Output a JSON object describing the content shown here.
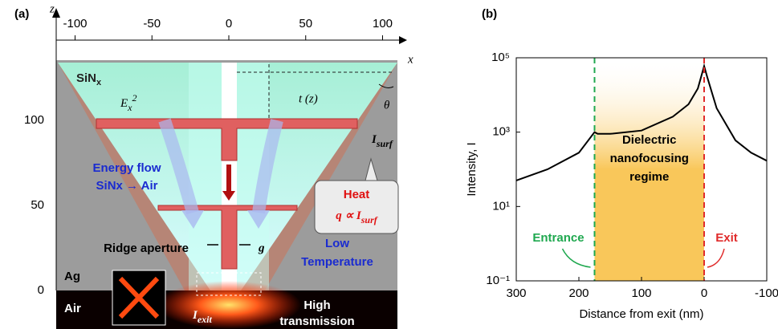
{
  "panel_a": {
    "label": "(a)",
    "z_label": "z",
    "x_label": "x",
    "xticks": [
      -100,
      -50,
      0,
      50,
      100
    ],
    "zticks": [
      0,
      50,
      100
    ],
    "sinx": {
      "base": "SiN",
      "sub": "x"
    },
    "field": {
      "base": "E",
      "sub": "x",
      "sup": "2"
    },
    "thickness": "t (z)",
    "angle": "θ",
    "i_surf": {
      "base": "I",
      "sub": "surf"
    },
    "energy_flow": [
      "Energy flow",
      "SiNx → Air"
    ],
    "heat": {
      "title": "Heat",
      "formula": "q ∝ ",
      "base": "I",
      "sub": "surf"
    },
    "ridge": "Ridge aperture",
    "gap": "g",
    "low_temp": [
      "Low",
      "Temperature"
    ],
    "ag": "Ag",
    "air": "Air",
    "i_exit": {
      "base": "I",
      "sub": "exit"
    },
    "high_trans": [
      "High",
      "transmission"
    ]
  },
  "chart_data": {
    "type": "line",
    "panel_label": "(b)",
    "x": [
      300,
      250,
      200,
      175,
      170,
      150,
      100,
      50,
      25,
      10,
      0,
      -5,
      -20,
      -50,
      -75,
      -100
    ],
    "values": [
      50,
      100,
      280,
      1000,
      900,
      900,
      1100,
      2600,
      5600,
      15000,
      60000,
      30000,
      4400,
      600,
      280,
      170
    ],
    "color": "#000000",
    "xlim": [
      300,
      -100
    ],
    "xticks": [
      300,
      200,
      100,
      0,
      -100
    ],
    "ylim": [
      0.1,
      100000
    ],
    "log_y": true,
    "yticks": [
      {
        "value": 100000,
        "label": "10⁵"
      },
      {
        "value": 1000,
        "label": "10³"
      },
      {
        "value": 10,
        "label": "10¹"
      },
      {
        "value": 0.1,
        "label": "10⁻¹"
      }
    ],
    "xlabel": "Distance from exit (nm)",
    "ylabel": "Intensity, I",
    "region_label": [
      "Dielectric",
      "nanofocusing",
      "regime"
    ],
    "region_color": "#f9c75a",
    "entrance": {
      "label": "Entrance",
      "x": 175,
      "color": "#1fa84f"
    },
    "exit": {
      "label": "Exit",
      "x": 0,
      "color": "#e02b2b"
    }
  }
}
